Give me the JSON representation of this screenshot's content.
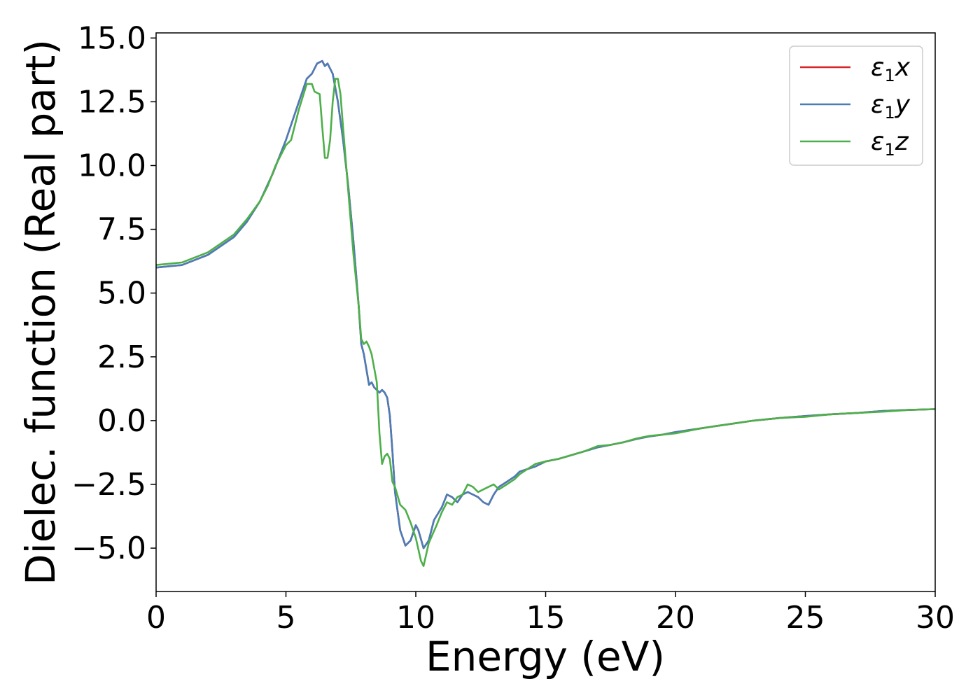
{
  "chart_data": {
    "type": "line",
    "xlabel": "Energy (eV)",
    "ylabel": "Dielec. function (Real part)",
    "xlim": [
      0,
      30
    ],
    "ylim": [
      -6.7,
      15.2
    ],
    "xticks": [
      0,
      5,
      10,
      15,
      20,
      25,
      30
    ],
    "xtick_labels": [
      "0",
      "5",
      "10",
      "15",
      "20",
      "25",
      "30"
    ],
    "yticks": [
      -5.0,
      -2.5,
      0.0,
      2.5,
      5.0,
      7.5,
      10.0,
      12.5,
      15.0
    ],
    "ytick_labels": [
      "−5.0",
      "−2.5",
      "0.0",
      "2.5",
      "5.0",
      "7.5",
      "10.0",
      "12.5",
      "15.0"
    ],
    "grid": false,
    "legend_position": "top-right",
    "series": [
      {
        "name": "ε₁x",
        "legend_main": "ε",
        "legend_sub": "1",
        "legend_var": "x",
        "color": "#d62728",
        "x": [
          0,
          1,
          2,
          3,
          3.5,
          4,
          4.5,
          5,
          5.5,
          5.8,
          6.0,
          6.2,
          6.4,
          6.5,
          6.6,
          6.8,
          7.0,
          7.2,
          7.4,
          7.6,
          7.8,
          7.9,
          8.0,
          8.1,
          8.2,
          8.3,
          8.4,
          8.5,
          8.6,
          8.7,
          8.8,
          8.9,
          9.0,
          9.1,
          9.2,
          9.4,
          9.6,
          9.8,
          10.0,
          10.1,
          10.3,
          10.5,
          10.7,
          11.0,
          11.2,
          11.4,
          11.6,
          11.8,
          12.0,
          12.2,
          12.4,
          12.6,
          12.8,
          13.0,
          13.2,
          13.5,
          13.8,
          14.0,
          14.3,
          14.6,
          15.0,
          15.5,
          16.0,
          16.5,
          17.0,
          17.5,
          18.0,
          18.5,
          19.0,
          19.5,
          20,
          21,
          22,
          23,
          24,
          25,
          26,
          27,
          28,
          29,
          30
        ],
        "y": [
          6.0,
          6.1,
          6.5,
          7.2,
          7.8,
          8.6,
          9.7,
          11.0,
          12.5,
          13.4,
          13.6,
          14.0,
          14.1,
          13.9,
          14.0,
          13.6,
          12.5,
          11.0,
          9.2,
          7.0,
          4.5,
          3.0,
          2.6,
          2.0,
          1.4,
          1.5,
          1.3,
          1.2,
          1.1,
          1.2,
          1.1,
          0.9,
          0.2,
          -1.2,
          -2.8,
          -4.3,
          -4.9,
          -4.7,
          -4.1,
          -4.3,
          -5.0,
          -4.7,
          -3.9,
          -3.4,
          -2.9,
          -3.0,
          -3.2,
          -2.9,
          -2.8,
          -2.9,
          -3.0,
          -3.2,
          -3.3,
          -2.9,
          -2.6,
          -2.4,
          -2.2,
          -2.0,
          -1.9,
          -1.8,
          -1.6,
          -1.5,
          -1.35,
          -1.2,
          -1.05,
          -0.95,
          -0.85,
          -0.72,
          -0.62,
          -0.55,
          -0.45,
          -0.3,
          -0.15,
          0.0,
          0.1,
          0.18,
          0.25,
          0.3,
          0.38,
          0.42,
          0.45
        ]
      },
      {
        "name": "ε₁y",
        "legend_main": "ε",
        "legend_sub": "1",
        "legend_var": "y",
        "color": "#4a7db8",
        "x": [
          0,
          1,
          2,
          3,
          3.5,
          4,
          4.5,
          5,
          5.5,
          5.8,
          6.0,
          6.2,
          6.4,
          6.5,
          6.6,
          6.8,
          7.0,
          7.2,
          7.4,
          7.6,
          7.8,
          7.9,
          8.0,
          8.1,
          8.2,
          8.3,
          8.4,
          8.5,
          8.6,
          8.7,
          8.8,
          8.9,
          9.0,
          9.1,
          9.2,
          9.4,
          9.6,
          9.8,
          10.0,
          10.1,
          10.3,
          10.5,
          10.7,
          11.0,
          11.2,
          11.4,
          11.6,
          11.8,
          12.0,
          12.2,
          12.4,
          12.6,
          12.8,
          13.0,
          13.2,
          13.5,
          13.8,
          14.0,
          14.3,
          14.6,
          15.0,
          15.5,
          16.0,
          16.5,
          17.0,
          17.5,
          18.0,
          18.5,
          19.0,
          19.5,
          20,
          21,
          22,
          23,
          24,
          25,
          26,
          27,
          28,
          29,
          30
        ],
        "y": [
          6.0,
          6.1,
          6.5,
          7.2,
          7.8,
          8.6,
          9.7,
          11.0,
          12.5,
          13.4,
          13.6,
          14.0,
          14.1,
          13.9,
          14.0,
          13.6,
          12.5,
          11.0,
          9.2,
          7.0,
          4.5,
          3.0,
          2.6,
          2.0,
          1.4,
          1.5,
          1.3,
          1.2,
          1.1,
          1.2,
          1.1,
          0.9,
          0.2,
          -1.2,
          -2.8,
          -4.3,
          -4.9,
          -4.7,
          -4.1,
          -4.3,
          -5.0,
          -4.7,
          -3.9,
          -3.4,
          -2.9,
          -3.0,
          -3.2,
          -2.9,
          -2.8,
          -2.9,
          -3.0,
          -3.2,
          -3.3,
          -2.9,
          -2.6,
          -2.4,
          -2.2,
          -2.0,
          -1.9,
          -1.8,
          -1.6,
          -1.5,
          -1.35,
          -1.2,
          -1.05,
          -0.95,
          -0.85,
          -0.72,
          -0.62,
          -0.55,
          -0.45,
          -0.3,
          -0.15,
          0.0,
          0.1,
          0.18,
          0.25,
          0.3,
          0.38,
          0.42,
          0.45
        ]
      },
      {
        "name": "ε₁z",
        "legend_main": "ε",
        "legend_sub": "1",
        "legend_var": "z",
        "color": "#4daf4a",
        "x": [
          0,
          1,
          2,
          3,
          3.5,
          4,
          4.3,
          4.6,
          5.0,
          5.2,
          5.5,
          5.8,
          6.0,
          6.1,
          6.3,
          6.4,
          6.5,
          6.6,
          6.7,
          6.8,
          6.9,
          7.0,
          7.1,
          7.2,
          7.4,
          7.6,
          7.8,
          7.9,
          8.0,
          8.1,
          8.2,
          8.3,
          8.5,
          8.6,
          8.7,
          8.8,
          8.9,
          9.0,
          9.1,
          9.2,
          9.4,
          9.6,
          9.8,
          10.0,
          10.2,
          10.3,
          10.5,
          10.8,
          11.0,
          11.2,
          11.4,
          11.6,
          11.8,
          12.0,
          12.2,
          12.4,
          12.6,
          12.8,
          13.0,
          13.2,
          13.5,
          13.8,
          14.0,
          14.3,
          14.6,
          15.0,
          15.5,
          16.0,
          16.5,
          17.0,
          17.5,
          18.0,
          18.5,
          19.0,
          19.5,
          20,
          21,
          22,
          23,
          24,
          25,
          26,
          27,
          28,
          29,
          30
        ],
        "y": [
          6.1,
          6.2,
          6.6,
          7.3,
          7.9,
          8.6,
          9.2,
          10.0,
          10.8,
          11.0,
          12.2,
          13.2,
          13.2,
          12.9,
          12.8,
          11.5,
          10.3,
          10.3,
          11.0,
          12.5,
          13.4,
          13.4,
          12.8,
          11.5,
          9.0,
          6.5,
          4.5,
          3.2,
          3.0,
          3.1,
          2.9,
          2.6,
          1.5,
          -0.5,
          -1.7,
          -1.4,
          -1.3,
          -1.5,
          -2.4,
          -2.6,
          -3.3,
          -3.5,
          -4.0,
          -4.6,
          -5.5,
          -5.7,
          -4.8,
          -4.1,
          -3.6,
          -3.2,
          -3.3,
          -3.0,
          -2.9,
          -2.5,
          -2.6,
          -2.8,
          -2.7,
          -2.6,
          -2.5,
          -2.7,
          -2.5,
          -2.3,
          -2.1,
          -1.9,
          -1.7,
          -1.6,
          -1.5,
          -1.35,
          -1.2,
          -1.0,
          -0.95,
          -0.85,
          -0.7,
          -0.6,
          -0.55,
          -0.5,
          -0.3,
          -0.15,
          0.0,
          0.1,
          0.15,
          0.25,
          0.3,
          0.35,
          0.42,
          0.45
        ]
      }
    ]
  }
}
